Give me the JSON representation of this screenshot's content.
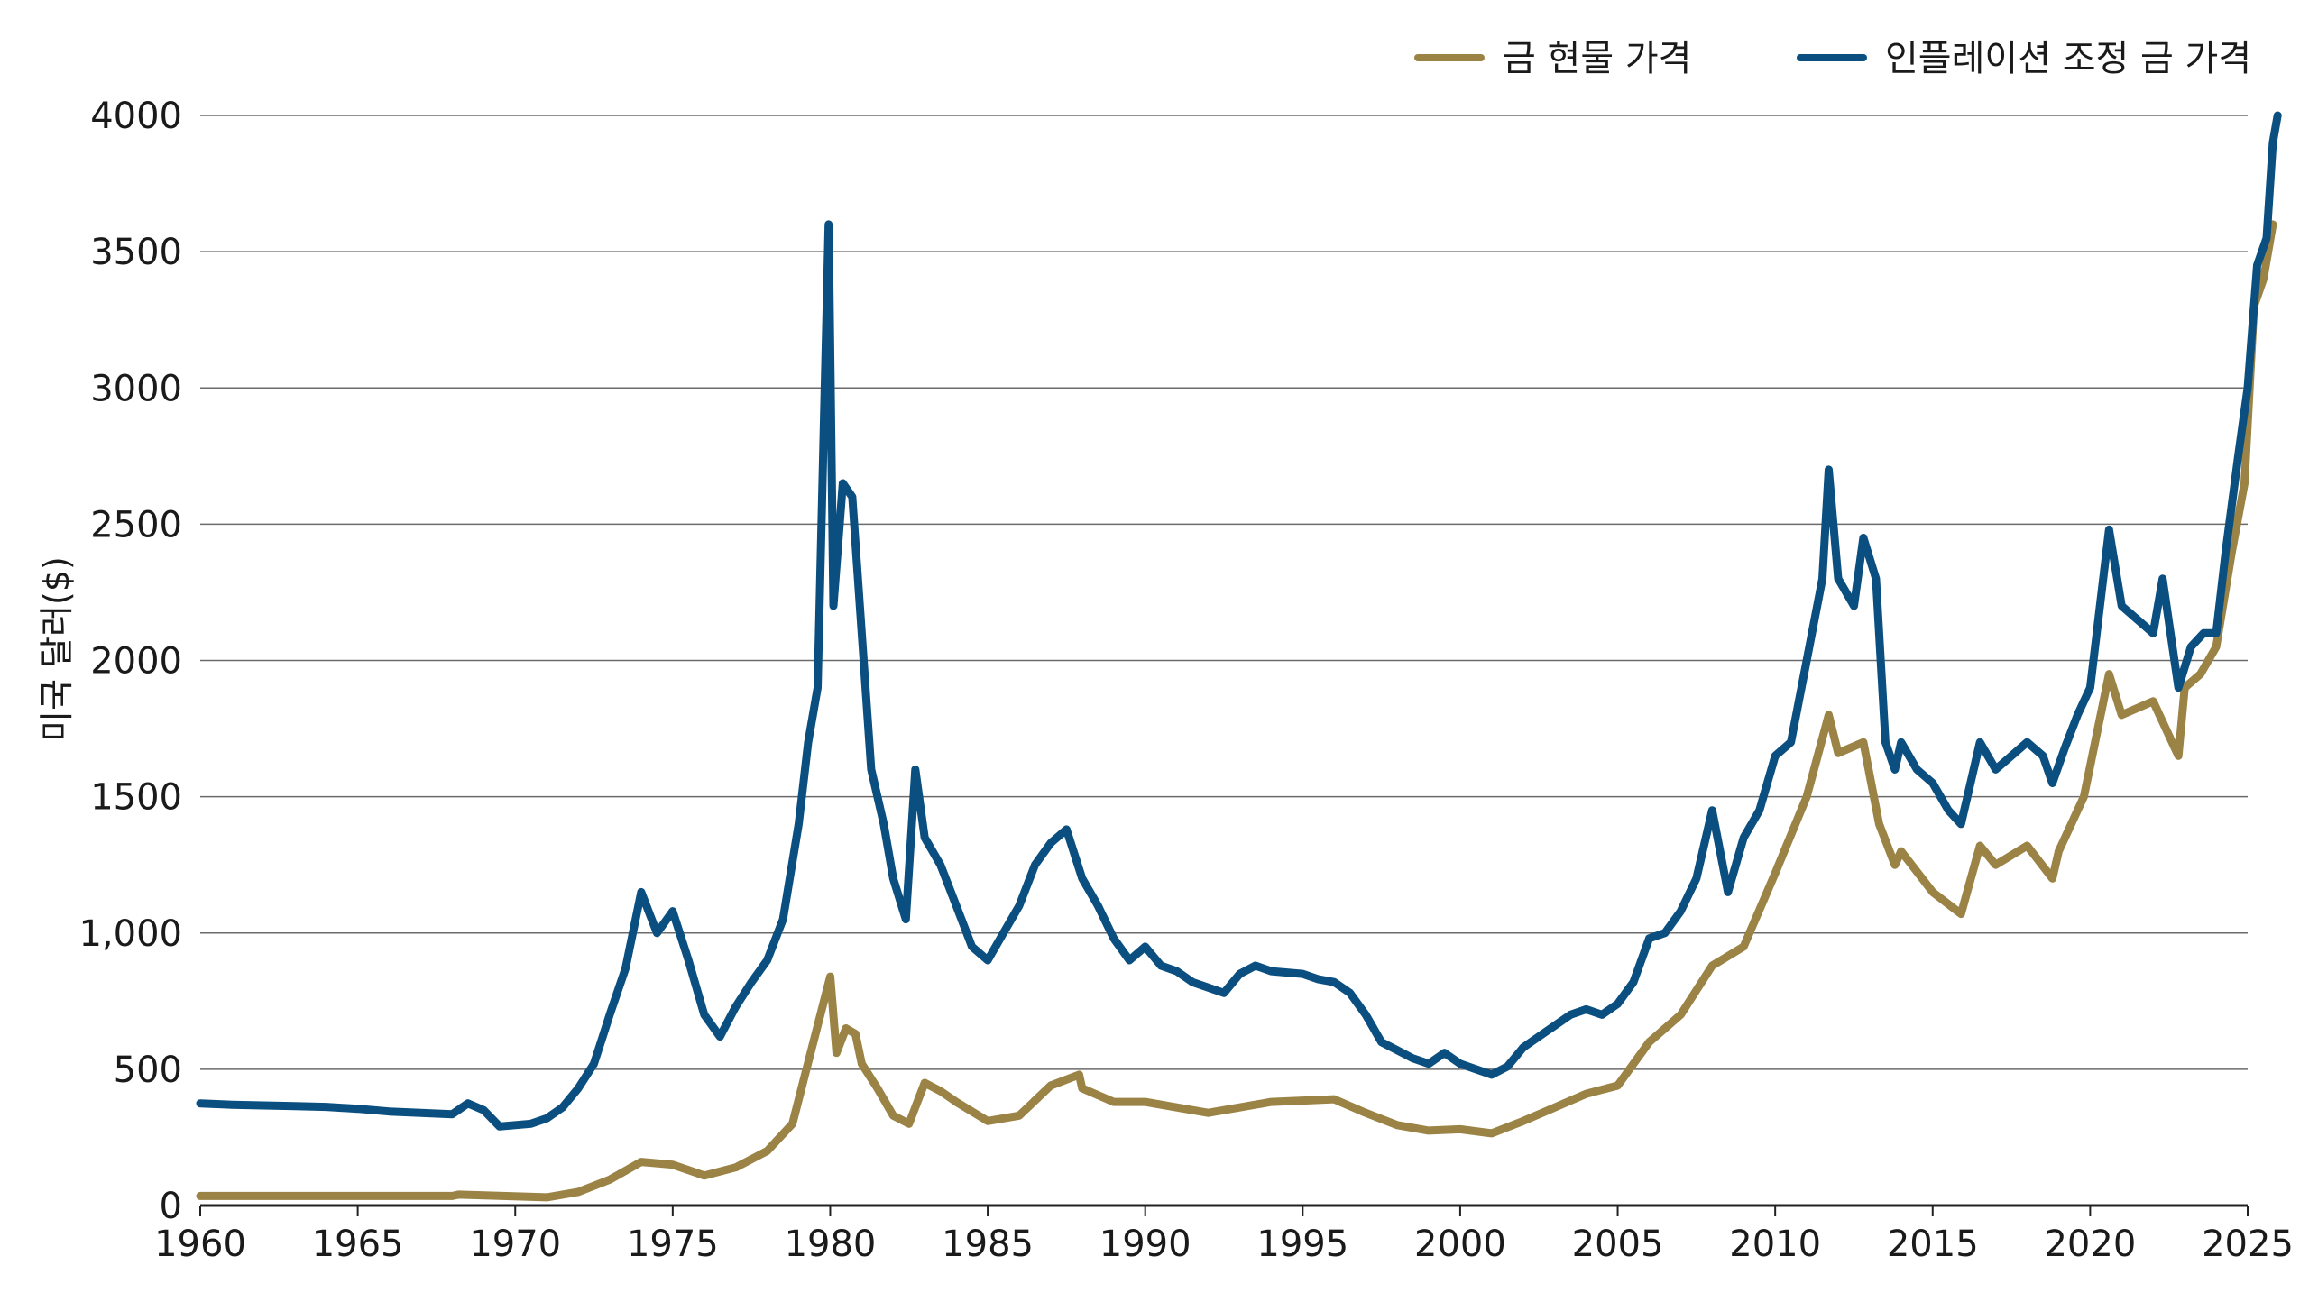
{
  "chart_data": {
    "type": "line",
    "title": "",
    "xlabel": "",
    "ylabel": "미국 달러($)",
    "xlim": [
      1960,
      2025
    ],
    "ylim": [
      0,
      4000
    ],
    "grid": "horizontal",
    "legend_position": "top-right",
    "x_ticks": [
      "1960",
      "1965",
      "1970",
      "1975",
      "1980",
      "1985",
      "1990",
      "1995",
      "2000",
      "2005",
      "2010",
      "2015",
      "2020",
      "2025"
    ],
    "y_ticks": [
      {
        "value": 0,
        "label": "0"
      },
      {
        "value": 500,
        "label": "500"
      },
      {
        "value": 1000,
        "label": "1,000"
      },
      {
        "value": 1500,
        "label": "1500"
      },
      {
        "value": 2000,
        "label": "2000"
      },
      {
        "value": 2500,
        "label": "2500"
      },
      {
        "value": 3000,
        "label": "3000"
      },
      {
        "value": 3500,
        "label": "3500"
      },
      {
        "value": 4000,
        "label": "4000"
      }
    ],
    "series": [
      {
        "name": "금 현물 가격",
        "color": "#9A8344",
        "points": [
          [
            1960,
            35
          ],
          [
            1968,
            35
          ],
          [
            1968.2,
            40
          ],
          [
            1971,
            30
          ],
          [
            1972,
            50
          ],
          [
            1973,
            95
          ],
          [
            1974,
            160
          ],
          [
            1975,
            150
          ],
          [
            1976,
            110
          ],
          [
            1977,
            140
          ],
          [
            1978,
            200
          ],
          [
            1978.8,
            300
          ],
          [
            1979.2,
            480
          ],
          [
            1980.0,
            840
          ],
          [
            1980.2,
            560
          ],
          [
            1980.5,
            650
          ],
          [
            1980.8,
            630
          ],
          [
            1981,
            520
          ],
          [
            1981.5,
            430
          ],
          [
            1982,
            330
          ],
          [
            1982.5,
            300
          ],
          [
            1983,
            450
          ],
          [
            1983.5,
            420
          ],
          [
            1984,
            380
          ],
          [
            1985,
            310
          ],
          [
            1986,
            330
          ],
          [
            1987,
            440
          ],
          [
            1987.9,
            480
          ],
          [
            1988,
            430
          ],
          [
            1989,
            380
          ],
          [
            1990,
            380
          ],
          [
            1991,
            360
          ],
          [
            1992,
            340
          ],
          [
            1993,
            360
          ],
          [
            1994,
            380
          ],
          [
            1995,
            385
          ],
          [
            1996,
            390
          ],
          [
            1997,
            340
          ],
          [
            1998,
            295
          ],
          [
            1999,
            275
          ],
          [
            2000,
            280
          ],
          [
            2001,
            265
          ],
          [
            2002,
            310
          ],
          [
            2003,
            360
          ],
          [
            2004,
            410
          ],
          [
            2005,
            440
          ],
          [
            2006,
            600
          ],
          [
            2007,
            700
          ],
          [
            2008,
            880
          ],
          [
            2009,
            950
          ],
          [
            2010,
            1220
          ],
          [
            2011,
            1500
          ],
          [
            2011.7,
            1800
          ],
          [
            2012,
            1660
          ],
          [
            2012.8,
            1700
          ],
          [
            2013.3,
            1400
          ],
          [
            2013.8,
            1250
          ],
          [
            2014,
            1300
          ],
          [
            2015,
            1150
          ],
          [
            2015.9,
            1070
          ],
          [
            2016.5,
            1320
          ],
          [
            2017,
            1250
          ],
          [
            2018,
            1320
          ],
          [
            2018.8,
            1200
          ],
          [
            2019,
            1300
          ],
          [
            2019.8,
            1500
          ],
          [
            2020.6,
            1950
          ],
          [
            2021,
            1800
          ],
          [
            2022,
            1850
          ],
          [
            2022.8,
            1650
          ],
          [
            2023,
            1900
          ],
          [
            2023.5,
            1950
          ],
          [
            2024,
            2050
          ],
          [
            2024.5,
            2400
          ],
          [
            2024.9,
            2650
          ],
          [
            2025.2,
            3300
          ],
          [
            2025.5,
            3400
          ],
          [
            2025.8,
            3600
          ]
        ]
      },
      {
        "name": "인플레이션 조정 금 가격",
        "color": "#0A4F80",
        "points": [
          [
            1960,
            375
          ],
          [
            1961,
            370
          ],
          [
            1963,
            365
          ],
          [
            1964,
            362
          ],
          [
            1965,
            355
          ],
          [
            1966,
            345
          ],
          [
            1967,
            340
          ],
          [
            1968,
            335
          ],
          [
            1968.5,
            375
          ],
          [
            1969,
            350
          ],
          [
            1969.5,
            290
          ],
          [
            1970.5,
            300
          ],
          [
            1971,
            320
          ],
          [
            1971.5,
            360
          ],
          [
            1972,
            430
          ],
          [
            1972.5,
            520
          ],
          [
            1973,
            700
          ],
          [
            1973.5,
            870
          ],
          [
            1974,
            1150
          ],
          [
            1974.5,
            1000
          ],
          [
            1975,
            1080
          ],
          [
            1975.5,
            900
          ],
          [
            1976,
            700
          ],
          [
            1976.5,
            620
          ],
          [
            1977,
            730
          ],
          [
            1977.5,
            820
          ],
          [
            1978,
            900
          ],
          [
            1978.5,
            1050
          ],
          [
            1979,
            1400
          ],
          [
            1979.3,
            1700
          ],
          [
            1979.6,
            1900
          ],
          [
            1979.95,
            3600
          ],
          [
            1980.1,
            2200
          ],
          [
            1980.4,
            2650
          ],
          [
            1980.7,
            2600
          ],
          [
            1981,
            2100
          ],
          [
            1981.3,
            1600
          ],
          [
            1981.7,
            1400
          ],
          [
            1982,
            1200
          ],
          [
            1982.4,
            1050
          ],
          [
            1982.7,
            1600
          ],
          [
            1983,
            1350
          ],
          [
            1983.5,
            1250
          ],
          [
            1984,
            1100
          ],
          [
            1984.5,
            950
          ],
          [
            1985,
            900
          ],
          [
            1985.5,
            1000
          ],
          [
            1986,
            1100
          ],
          [
            1986.5,
            1250
          ],
          [
            1987,
            1330
          ],
          [
            1987.5,
            1380
          ],
          [
            1988,
            1200
          ],
          [
            1988.5,
            1100
          ],
          [
            1989,
            980
          ],
          [
            1989.5,
            900
          ],
          [
            1990,
            950
          ],
          [
            1990.5,
            880
          ],
          [
            1991,
            860
          ],
          [
            1991.5,
            820
          ],
          [
            1992,
            800
          ],
          [
            1992.5,
            780
          ],
          [
            1993,
            850
          ],
          [
            1993.5,
            880
          ],
          [
            1994,
            860
          ],
          [
            1995,
            850
          ],
          [
            1995.5,
            830
          ],
          [
            1996,
            820
          ],
          [
            1996.5,
            780
          ],
          [
            1997,
            700
          ],
          [
            1997.5,
            600
          ],
          [
            1998,
            570
          ],
          [
            1998.5,
            540
          ],
          [
            1999,
            520
          ],
          [
            1999.5,
            560
          ],
          [
            2000,
            520
          ],
          [
            2000.5,
            500
          ],
          [
            2001,
            480
          ],
          [
            2001.5,
            510
          ],
          [
            2002,
            580
          ],
          [
            2002.5,
            620
          ],
          [
            2003,
            660
          ],
          [
            2003.5,
            700
          ],
          [
            2004,
            720
          ],
          [
            2004.5,
            700
          ],
          [
            2005,
            740
          ],
          [
            2005.5,
            820
          ],
          [
            2006,
            980
          ],
          [
            2006.5,
            1000
          ],
          [
            2007,
            1080
          ],
          [
            2007.5,
            1200
          ],
          [
            2008,
            1450
          ],
          [
            2008.5,
            1150
          ],
          [
            2009,
            1350
          ],
          [
            2009.5,
            1450
          ],
          [
            2010,
            1650
          ],
          [
            2010.5,
            1700
          ],
          [
            2011,
            2000
          ],
          [
            2011.5,
            2300
          ],
          [
            2011.7,
            2700
          ],
          [
            2012,
            2300
          ],
          [
            2012.5,
            2200
          ],
          [
            2012.8,
            2450
          ],
          [
            2013.2,
            2300
          ],
          [
            2013.5,
            1700
          ],
          [
            2013.8,
            1600
          ],
          [
            2014,
            1700
          ],
          [
            2014.5,
            1600
          ],
          [
            2015,
            1550
          ],
          [
            2015.5,
            1450
          ],
          [
            2015.9,
            1400
          ],
          [
            2016.5,
            1700
          ],
          [
            2017,
            1600
          ],
          [
            2017.5,
            1650
          ],
          [
            2018,
            1700
          ],
          [
            2018.5,
            1650
          ],
          [
            2018.8,
            1550
          ],
          [
            2019.2,
            1680
          ],
          [
            2019.6,
            1800
          ],
          [
            2020,
            1900
          ],
          [
            2020.6,
            2480
          ],
          [
            2021,
            2200
          ],
          [
            2021.5,
            2150
          ],
          [
            2022,
            2100
          ],
          [
            2022.3,
            2300
          ],
          [
            2022.8,
            1900
          ],
          [
            2023.2,
            2050
          ],
          [
            2023.6,
            2100
          ],
          [
            2024,
            2100
          ],
          [
            2024.3,
            2400
          ],
          [
            2024.7,
            2750
          ],
          [
            2025.0,
            3000
          ],
          [
            2025.3,
            3450
          ],
          [
            2025.6,
            3550
          ],
          [
            2025.8,
            3900
          ],
          [
            2025.95,
            4000
          ]
        ]
      }
    ]
  }
}
